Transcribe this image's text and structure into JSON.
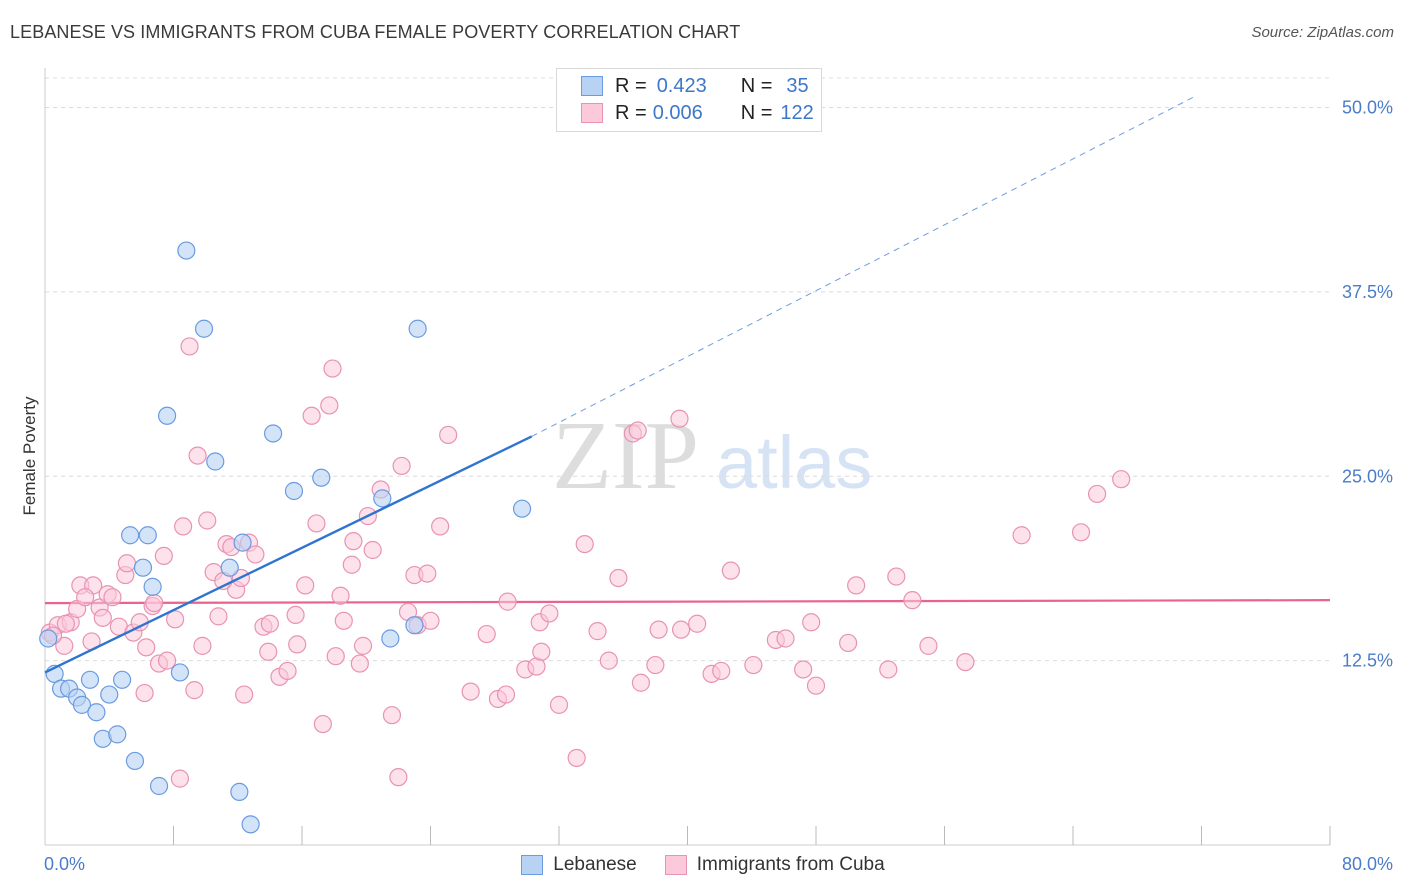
{
  "header": {
    "title": "LEBANESE VS IMMIGRANTS FROM CUBA FEMALE POVERTY CORRELATION CHART",
    "source": "Source: ZipAtlas.com"
  },
  "stats": {
    "row1": {
      "r_label": "R =",
      "r_value": "0.423",
      "n_label": "N =",
      "n_value": "35"
    },
    "row2": {
      "r_label": "R =",
      "r_value": "0.006",
      "n_label": "N =",
      "n_value": "122"
    }
  },
  "legend": {
    "item1": "Lebanese",
    "item2": "Immigrants from Cuba"
  },
  "watermark": {
    "zip": "ZIP",
    "atlas": "atlas"
  },
  "colors": {
    "blue_fill": "#b8d2f4",
    "blue_stroke": "#6a9be0",
    "blue_line": "#2f74d0",
    "pink_fill": "#fbc9da",
    "pink_stroke": "#e893b3",
    "pink_line": "#e8648f",
    "tick_text": "#4a7cc9",
    "grid": "#dcdcdc"
  },
  "chart_data": {
    "type": "scatter",
    "title": "LEBANESE VS IMMIGRANTS FROM CUBA FEMALE POVERTY CORRELATION CHART",
    "xlabel": "",
    "ylabel": "Female Poverty",
    "xlim": [
      0,
      80
    ],
    "ylim": [
      0,
      52
    ],
    "x_tick_labels": [
      {
        "value": 0,
        "label": "0.0%"
      },
      {
        "value": 80,
        "label": "80.0%"
      }
    ],
    "y_ticks": [
      {
        "value": 12.5,
        "label": "12.5%"
      },
      {
        "value": 25,
        "label": "25.0%"
      },
      {
        "value": 37.5,
        "label": "37.5%"
      },
      {
        "value": 50,
        "label": "50.0%"
      }
    ],
    "x_minor_ticks": [
      8,
      16,
      24,
      32,
      40,
      48,
      56,
      64,
      72,
      80
    ],
    "grid": true,
    "legend_position": "bottom",
    "series": [
      {
        "name": "Lebanese",
        "color": "#6a9be0",
        "r": 0.423,
        "n": 35,
        "points": [
          [
            0.2,
            14.0
          ],
          [
            0.6,
            11.6
          ],
          [
            1.0,
            10.6
          ],
          [
            1.5,
            10.6
          ],
          [
            2.0,
            10.0
          ],
          [
            2.3,
            9.5
          ],
          [
            2.8,
            11.2
          ],
          [
            3.2,
            9.0
          ],
          [
            3.6,
            7.2
          ],
          [
            4.0,
            10.2
          ],
          [
            4.5,
            7.5
          ],
          [
            4.8,
            11.2
          ],
          [
            5.3,
            21.0
          ],
          [
            5.6,
            5.7
          ],
          [
            6.1,
            18.8
          ],
          [
            6.4,
            21.0
          ],
          [
            6.7,
            17.5
          ],
          [
            7.1,
            4.0
          ],
          [
            7.6,
            29.1
          ],
          [
            8.4,
            11.7
          ],
          [
            8.8,
            40.3
          ],
          [
            9.9,
            35.0
          ],
          [
            10.6,
            26.0
          ],
          [
            11.5,
            18.8
          ],
          [
            12.1,
            3.6
          ],
          [
            12.3,
            20.5
          ],
          [
            12.8,
            1.4
          ],
          [
            14.2,
            27.9
          ],
          [
            15.5,
            24.0
          ],
          [
            17.2,
            24.9
          ],
          [
            21.0,
            23.5
          ],
          [
            21.5,
            14.0
          ],
          [
            23.0,
            14.9
          ],
          [
            23.2,
            35.0
          ],
          [
            29.7,
            22.8
          ]
        ],
        "trend": {
          "x0": 0,
          "y0": 11.7,
          "x1": 30.3,
          "y1": 27.7,
          "dash_to_x": 71.5,
          "dash_to_y": 50.7
        }
      },
      {
        "name": "Immigrants from Cuba",
        "color": "#e893b3",
        "r": 0.006,
        "n": 122,
        "points": [
          [
            0.3,
            14.4
          ],
          [
            0.8,
            14.9
          ],
          [
            1.2,
            13.5
          ],
          [
            1.6,
            15.1
          ],
          [
            2.0,
            16.0
          ],
          [
            2.2,
            17.6
          ],
          [
            2.9,
            13.8
          ],
          [
            3.0,
            17.6
          ],
          [
            3.4,
            16.1
          ],
          [
            3.6,
            15.4
          ],
          [
            3.9,
            17.0
          ],
          [
            4.2,
            16.8
          ],
          [
            4.6,
            14.8
          ],
          [
            5.0,
            18.3
          ],
          [
            5.1,
            19.1
          ],
          [
            5.5,
            14.4
          ],
          [
            5.9,
            15.1
          ],
          [
            6.2,
            10.3
          ],
          [
            6.3,
            13.4
          ],
          [
            6.7,
            16.2
          ],
          [
            7.1,
            12.3
          ],
          [
            7.4,
            19.6
          ],
          [
            7.6,
            12.5
          ],
          [
            8.1,
            15.3
          ],
          [
            8.4,
            4.5
          ],
          [
            8.6,
            21.6
          ],
          [
            9.0,
            33.8
          ],
          [
            9.3,
            10.5
          ],
          [
            9.5,
            26.4
          ],
          [
            9.8,
            13.5
          ],
          [
            10.1,
            22.0
          ],
          [
            10.5,
            18.5
          ],
          [
            10.8,
            15.5
          ],
          [
            11.3,
            20.4
          ],
          [
            11.6,
            20.2
          ],
          [
            11.9,
            17.3
          ],
          [
            12.2,
            18.1
          ],
          [
            12.4,
            10.2
          ],
          [
            12.7,
            20.5
          ],
          [
            13.1,
            19.7
          ],
          [
            13.6,
            14.8
          ],
          [
            13.9,
            13.1
          ],
          [
            14.0,
            15.0
          ],
          [
            14.6,
            11.4
          ],
          [
            15.1,
            11.8
          ],
          [
            15.6,
            15.6
          ],
          [
            15.7,
            13.6
          ],
          [
            16.2,
            17.6
          ],
          [
            16.6,
            29.1
          ],
          [
            16.9,
            21.8
          ],
          [
            17.3,
            8.2
          ],
          [
            17.7,
            29.8
          ],
          [
            17.9,
            32.3
          ],
          [
            18.1,
            12.8
          ],
          [
            18.4,
            16.9
          ],
          [
            18.6,
            15.2
          ],
          [
            19.1,
            19.0
          ],
          [
            19.2,
            20.6
          ],
          [
            19.6,
            12.3
          ],
          [
            19.8,
            13.5
          ],
          [
            20.1,
            22.3
          ],
          [
            20.4,
            20.0
          ],
          [
            20.9,
            24.1
          ],
          [
            21.6,
            8.8
          ],
          [
            22.0,
            4.6
          ],
          [
            22.2,
            25.7
          ],
          [
            22.6,
            15.8
          ],
          [
            23.2,
            14.9
          ],
          [
            23.0,
            18.3
          ],
          [
            23.8,
            18.4
          ],
          [
            24.6,
            21.6
          ],
          [
            25.1,
            27.8
          ],
          [
            26.5,
            10.4
          ],
          [
            27.5,
            14.3
          ],
          [
            28.2,
            9.9
          ],
          [
            28.7,
            10.2
          ],
          [
            28.8,
            16.5
          ],
          [
            29.9,
            11.9
          ],
          [
            30.6,
            12.1
          ],
          [
            30.9,
            13.1
          ],
          [
            30.8,
            15.1
          ],
          [
            31.4,
            15.7
          ],
          [
            32.0,
            9.5
          ],
          [
            33.1,
            5.9
          ],
          [
            33.6,
            20.4
          ],
          [
            34.4,
            14.5
          ],
          [
            35.1,
            12.5
          ],
          [
            35.7,
            18.1
          ],
          [
            36.6,
            27.9
          ],
          [
            36.9,
            28.1
          ],
          [
            37.1,
            11.0
          ],
          [
            38.0,
            12.2
          ],
          [
            38.2,
            14.6
          ],
          [
            39.5,
            28.9
          ],
          [
            39.6,
            14.6
          ],
          [
            40.6,
            15.0
          ],
          [
            41.5,
            11.6
          ],
          [
            42.1,
            11.8
          ],
          [
            42.7,
            18.6
          ],
          [
            44.1,
            12.2
          ],
          [
            45.5,
            13.9
          ],
          [
            46.1,
            14.0
          ],
          [
            47.2,
            11.9
          ],
          [
            47.7,
            15.1
          ],
          [
            48.0,
            10.8
          ],
          [
            50.0,
            13.7
          ],
          [
            50.5,
            17.6
          ],
          [
            52.5,
            11.9
          ],
          [
            53.0,
            18.2
          ],
          [
            54.0,
            16.6
          ],
          [
            55.0,
            13.5
          ],
          [
            57.3,
            12.4
          ],
          [
            60.8,
            21.0
          ],
          [
            64.5,
            21.2
          ],
          [
            65.5,
            23.8
          ],
          [
            67.0,
            24.8
          ],
          [
            0.5,
            14.2
          ],
          [
            1.3,
            15.0
          ],
          [
            2.5,
            16.8
          ],
          [
            6.8,
            16.4
          ],
          [
            11.1,
            17.9
          ],
          [
            24.0,
            15.2
          ]
        ],
        "trend": {
          "x0": 0,
          "y0": 16.4,
          "x1": 80,
          "y1": 16.6
        }
      }
    ]
  }
}
